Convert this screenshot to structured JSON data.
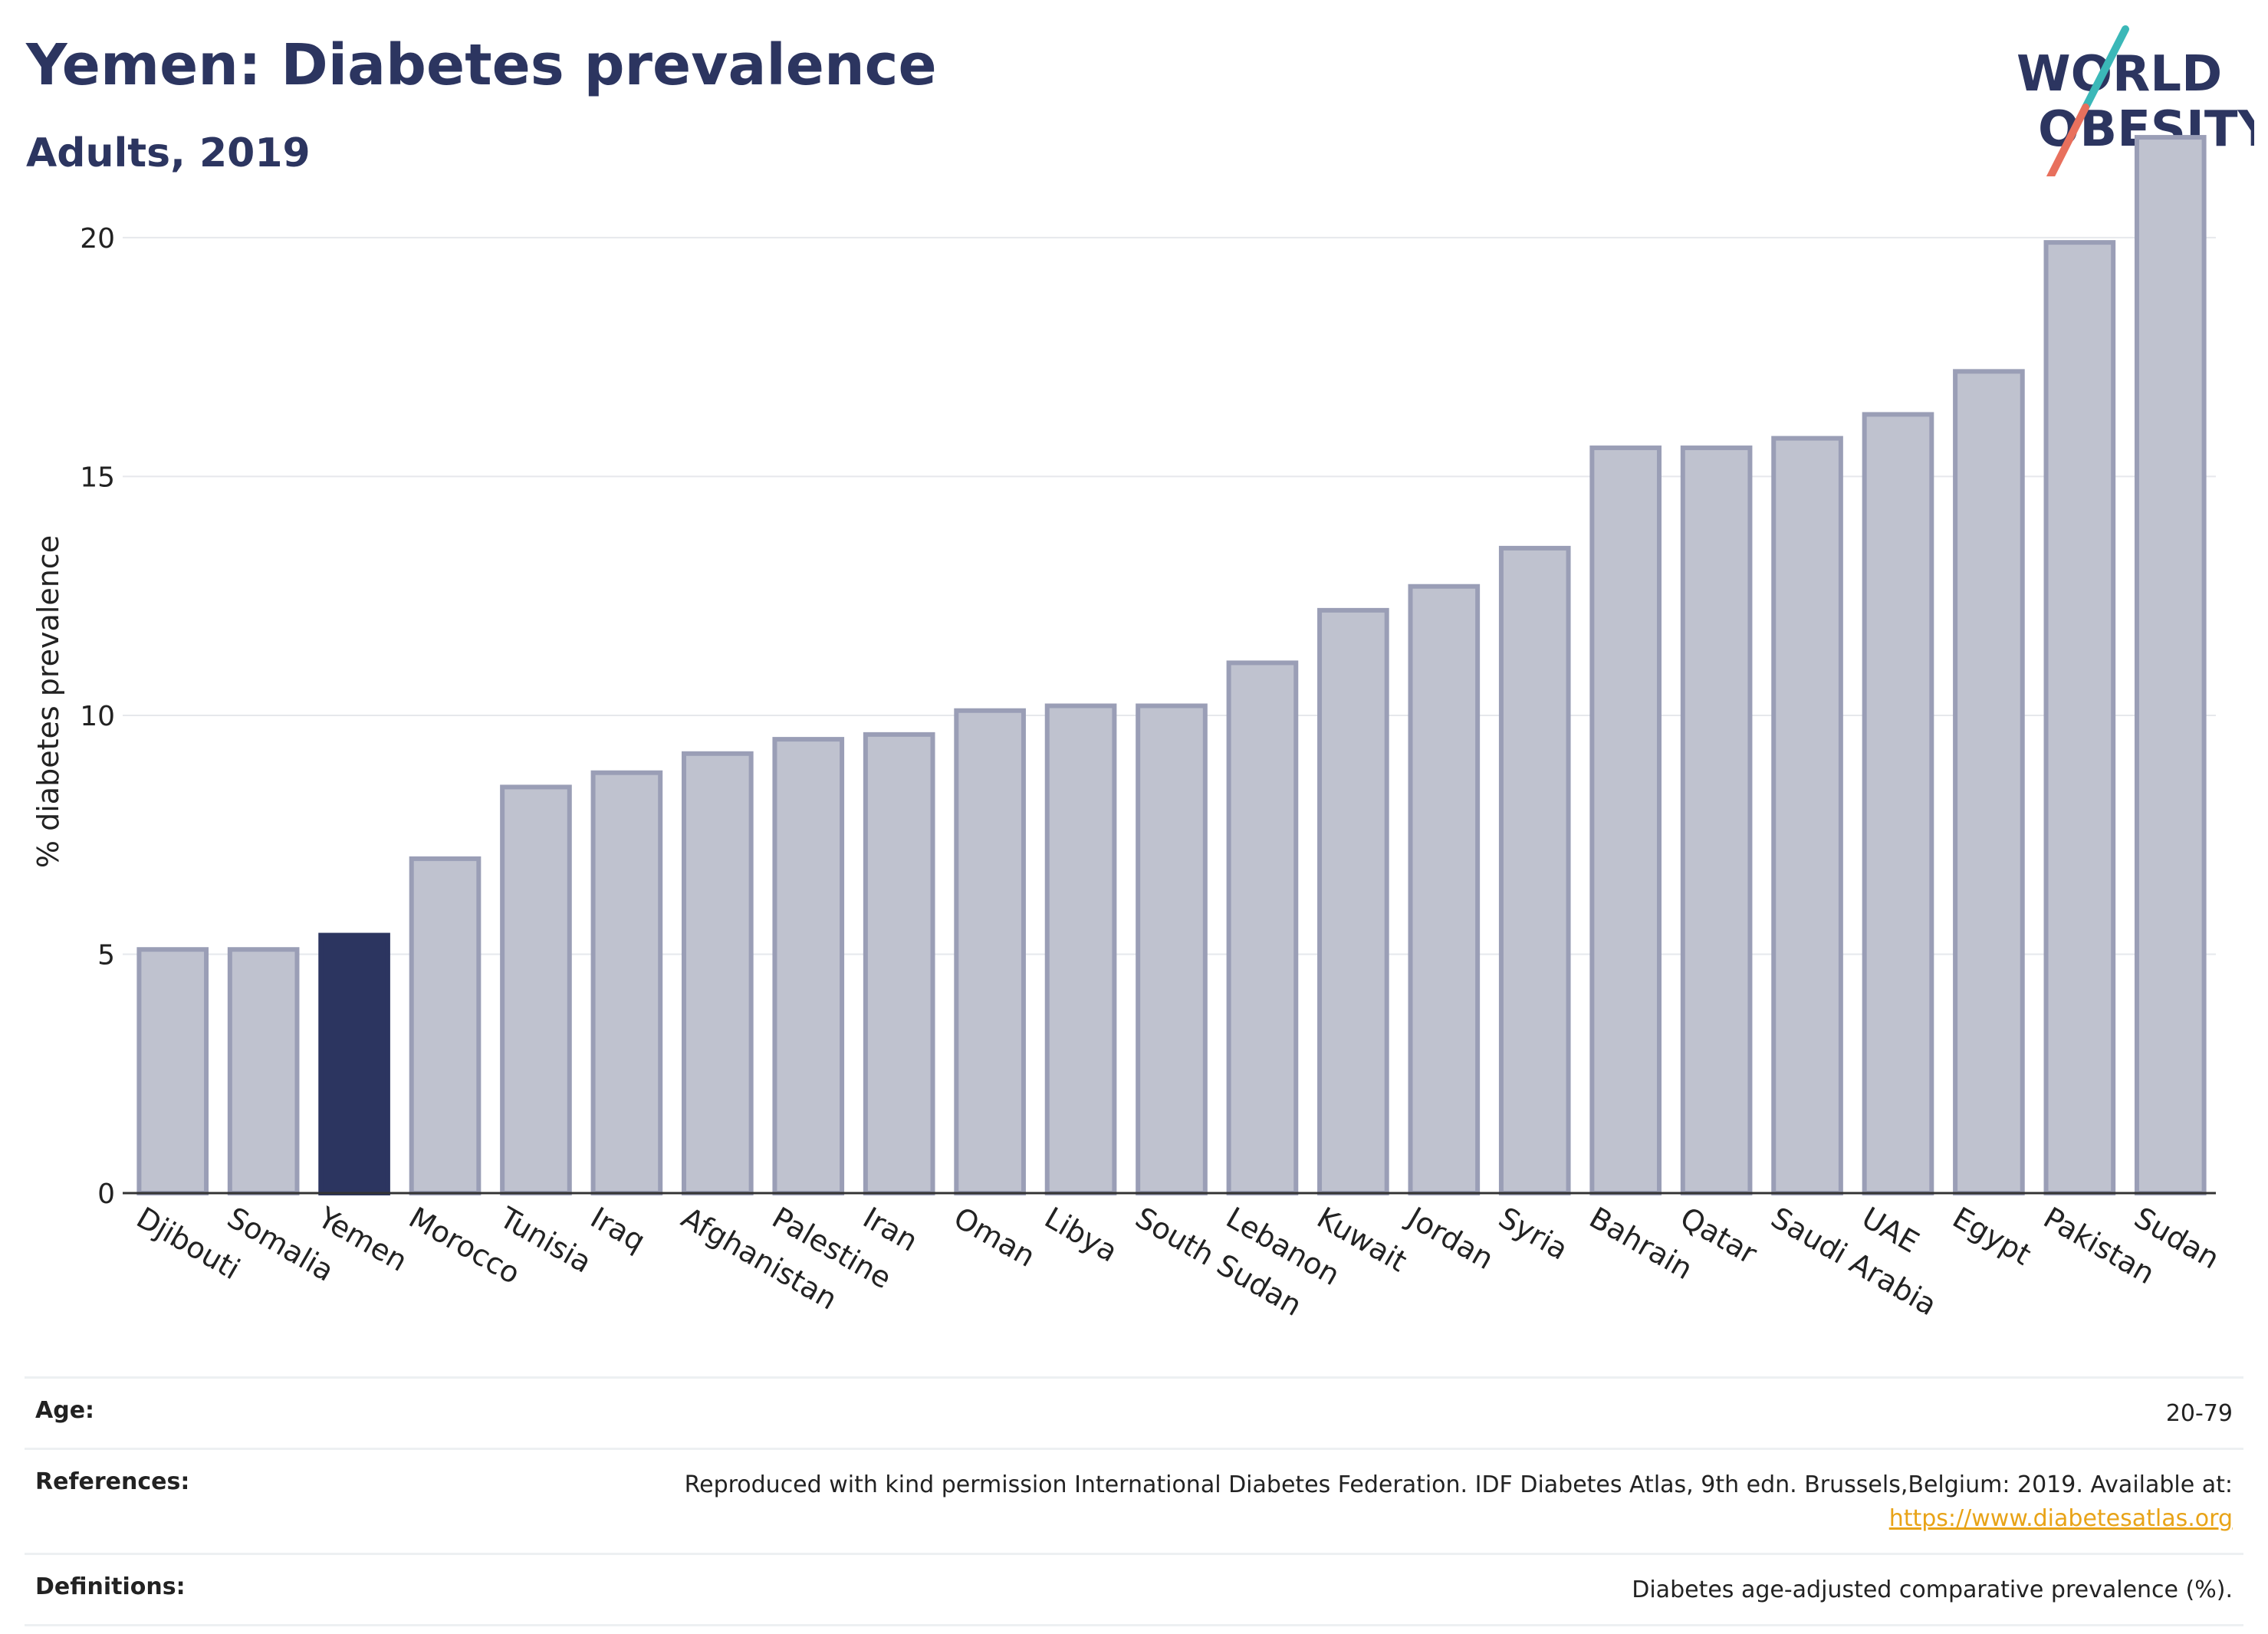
{
  "header": {
    "title": "Yemen: Diabetes prevalence",
    "subtitle": "Adults, 2019"
  },
  "logo": {
    "line1": "WORLD",
    "line2": "OBESITY",
    "slash_colors": [
      "#3bb8b8",
      "#e8705d"
    ],
    "text_color": "#2c3560"
  },
  "chart_data": {
    "type": "bar",
    "title": "Yemen: Diabetes prevalence",
    "subtitle": "Adults, 2019",
    "xlabel": "",
    "ylabel": "% diabetes prevalence",
    "categories": [
      "Djibouti",
      "Somalia",
      "Yemen",
      "Morocco",
      "Tunisia",
      "Iraq",
      "Afghanistan",
      "Palestine",
      "Iran",
      "Oman",
      "Libya",
      "South Sudan",
      "Lebanon",
      "Kuwait",
      "Jordan",
      "Syria",
      "Bahrain",
      "Qatar",
      "Saudi Arabia",
      "UAE",
      "Egypt",
      "Pakistan",
      "Sudan"
    ],
    "values": [
      5.1,
      5.1,
      5.4,
      7.0,
      8.5,
      8.8,
      9.2,
      9.5,
      9.6,
      10.1,
      10.2,
      10.2,
      11.1,
      12.2,
      12.7,
      13.5,
      15.6,
      15.6,
      15.8,
      16.3,
      17.2,
      19.9,
      22.1
    ],
    "highlight": "Yemen",
    "ylim": [
      0,
      23
    ],
    "yticks": [
      0,
      5,
      10,
      15,
      20
    ],
    "grid": true,
    "colors": {
      "bar": "#bfc2cf",
      "bar_border": "#9a9eb6",
      "highlight": "#2c3560"
    }
  },
  "footer": {
    "age_label": "Age:",
    "age_value": "20-79",
    "references_label": "References:",
    "references_text": "Reproduced with kind permission International Diabetes Federation. IDF Diabetes Atlas, 9th edn. Brussels,Belgium: 2019. Available at:",
    "references_link": "https://www.diabetesatlas.org",
    "definitions_label": "Definitions:",
    "definitions_value": "Diabetes age-adjusted comparative prevalence (%)."
  }
}
